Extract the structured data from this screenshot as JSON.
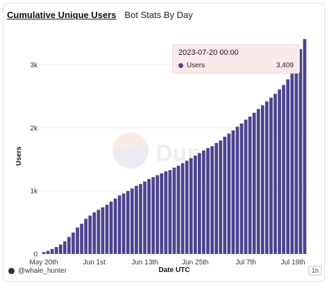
{
  "header": {
    "active_tab": "Cumulative Unique Users",
    "tab2": "Bot Stats By Day"
  },
  "watermark": {
    "text": "Dune"
  },
  "footer": {
    "author": "@whale_hunter",
    "interval_badge": "1h"
  },
  "tooltip": {
    "title": "2023-07-20 00:00",
    "series": "Users",
    "value": "3,409"
  },
  "colors": {
    "bar": "#4a4590",
    "tooltip_dot": "#4a4590",
    "tooltip_bg": "#fbeaea"
  },
  "chart_data": {
    "type": "bar",
    "title": "",
    "xlabel": "Date UTC",
    "ylabel": "Users",
    "ylim": [
      0,
      3500
    ],
    "yticks": [
      0,
      1000,
      2000,
      3000
    ],
    "ytick_labels": [
      "0",
      "1k",
      "2k",
      "3k"
    ],
    "x_tick_labels": [
      "May 20th",
      "Jun 1st",
      "Jun 13th",
      "Jun 25th",
      "Jul 7th",
      "Jul 19th"
    ],
    "x_tick_positions": [
      0,
      12,
      24,
      36,
      48,
      60
    ],
    "grid": true,
    "legend": "none",
    "categories_start": "2023-05-19",
    "categories_end": "2023-07-20",
    "values": [
      30,
      50,
      80,
      110,
      150,
      200,
      270,
      340,
      420,
      480,
      560,
      610,
      660,
      700,
      740,
      780,
      830,
      880,
      930,
      960,
      1000,
      1040,
      1080,
      1110,
      1150,
      1190,
      1220,
      1250,
      1280,
      1310,
      1330,
      1370,
      1400,
      1440,
      1480,
      1520,
      1560,
      1600,
      1640,
      1680,
      1710,
      1760,
      1800,
      1860,
      1910,
      1960,
      2020,
      2070,
      2130,
      2180,
      2240,
      2300,
      2360,
      2420,
      2480,
      2540,
      2610,
      2680,
      2770,
      2860,
      2980,
      3250,
      3409
    ]
  }
}
